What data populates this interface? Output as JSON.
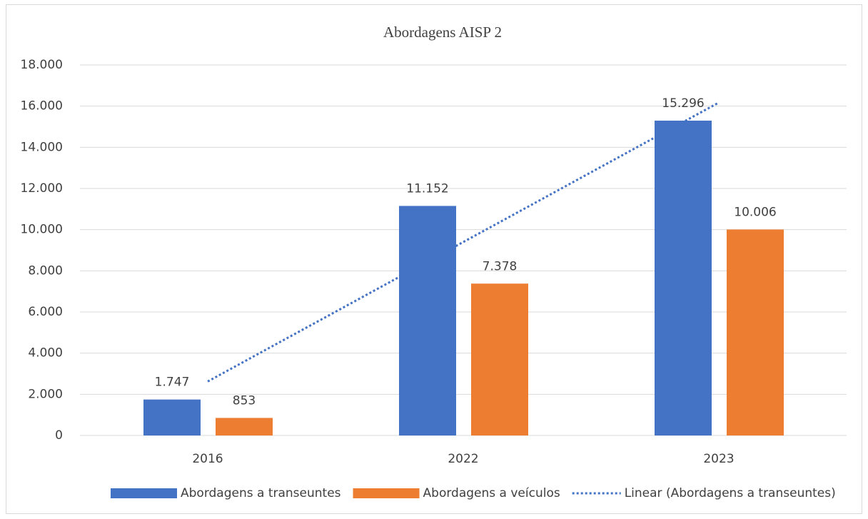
{
  "chart_data": {
    "type": "bar",
    "title": "Abordagens AISP 2",
    "categories": [
      "2016",
      "2022",
      "2023"
    ],
    "series": [
      {
        "name": "Abordagens a transeuntes",
        "color": "#4472c4",
        "values": [
          1747,
          11152,
          15296
        ],
        "value_labels": [
          "1.747",
          "11.152",
          "15.296"
        ]
      },
      {
        "name": "Abordagens a veículos",
        "color": "#ed7d31",
        "values": [
          853,
          7378,
          10006
        ],
        "value_labels": [
          "853",
          "7.378",
          "10.006"
        ]
      }
    ],
    "trendline": {
      "name": "Linear (Abordagens a transeuntes)",
      "color": "#4472c4",
      "values": [
        2624,
        9398,
        16173
      ]
    },
    "ylim": [
      0,
      18000
    ],
    "yticks": [
      0,
      {
        "value": 2000,
        "label": "2.000"
      },
      {
        "value": 4000,
        "label": "4.000"
      },
      {
        "value": 6000,
        "label": "6.000"
      },
      {
        "value": 8000,
        "label": "8.000"
      },
      {
        "value": 10000,
        "label": "10.000"
      },
      {
        "value": 12000,
        "label": "12.000"
      },
      {
        "value": 14000,
        "label": "14.000"
      },
      {
        "value": 16000,
        "label": "16.000"
      },
      {
        "value": 18000,
        "label": "18.000"
      }
    ],
    "grid": true,
    "legend": "bottom"
  }
}
